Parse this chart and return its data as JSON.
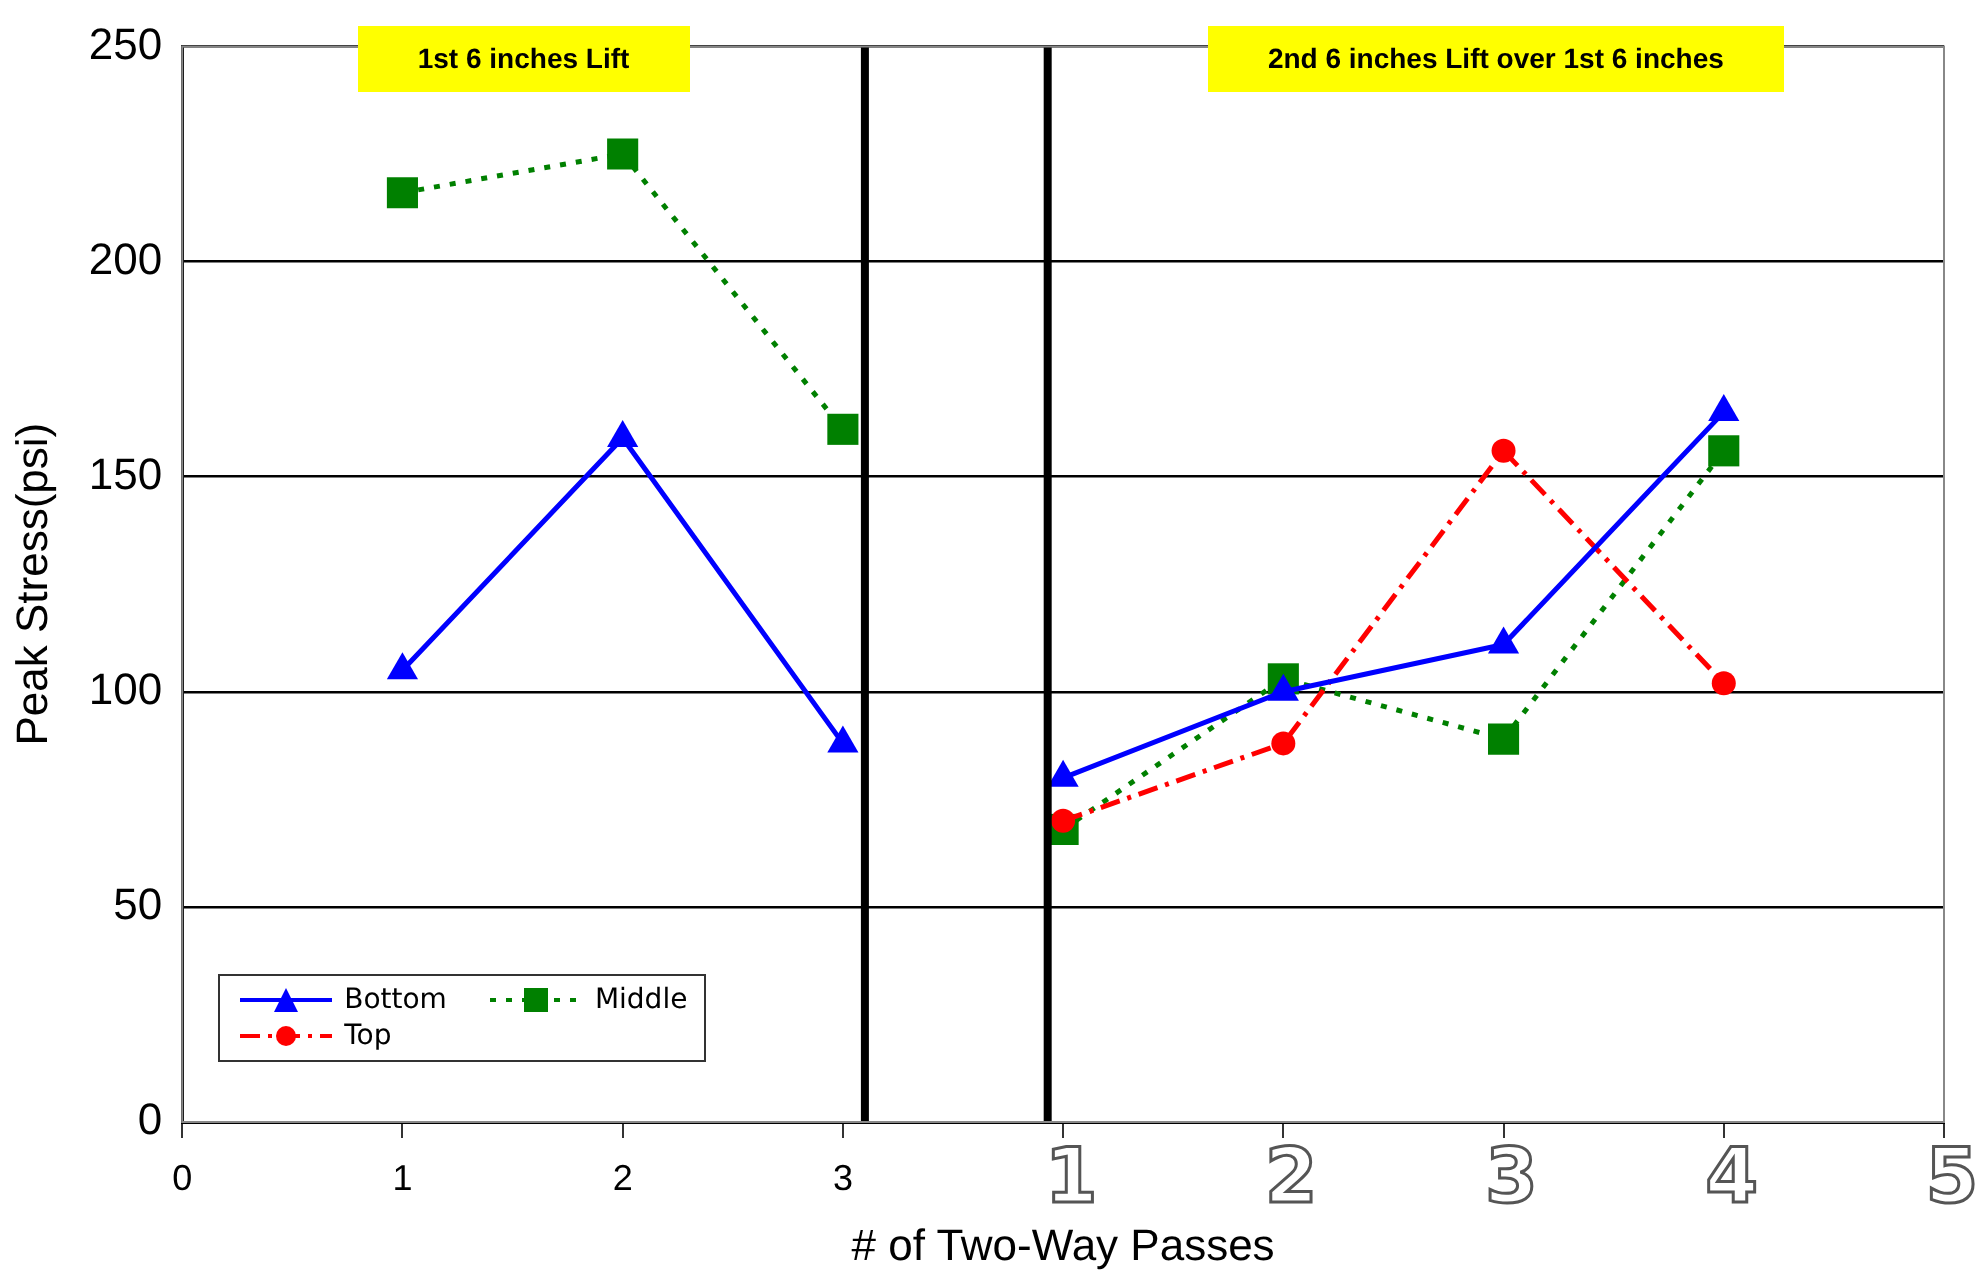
{
  "chart_data": {
    "type": "line",
    "xlabel": "# of Two-Way Passes",
    "ylabel": "Peak Stress(psi)",
    "xlim": [
      0,
      8
    ],
    "xticks": [
      0,
      1,
      2,
      3,
      {
        "value": 4,
        "label": null
      },
      {
        "value": 5,
        "label": null
      },
      {
        "value": 6,
        "label": null
      },
      {
        "value": 7,
        "label": null
      },
      {
        "value": 8,
        "label": null
      }
    ],
    "ylim": [
      0,
      250
    ],
    "yticks": [
      0,
      50,
      100,
      150,
      200,
      250
    ],
    "grid": "y",
    "legend": "bottom left",
    "series": [
      {
        "name": "Bottom",
        "color": "#0000ff",
        "marker": "triangle",
        "line_style": "solid",
        "x": [
          1,
          2,
          3,
          3.5,
          4,
          5,
          6,
          7
        ],
        "values": [
          105,
          159,
          88,
          null,
          80,
          100,
          111,
          165
        ]
      },
      {
        "name": "Top",
        "color": "#ff0000",
        "marker": "circle",
        "line_style": "dashed",
        "x": [
          4,
          5,
          6,
          7
        ],
        "values": [
          70,
          88,
          156,
          102
        ]
      },
      {
        "name": "Middle",
        "color": "#008000",
        "marker": "square",
        "line_style": "dotted",
        "x": [
          1,
          2,
          3,
          3.5,
          4,
          5,
          6,
          7
        ],
        "values": [
          216,
          225,
          161,
          null,
          68,
          103,
          89,
          156
        ]
      }
    ],
    "ref_lines": [
      {
        "axis": "x",
        "value": 3.1,
        "color": "#000000"
      },
      {
        "axis": "x",
        "value": 3.93,
        "color": "#000000"
      }
    ],
    "annotations": [
      "1st 6 inches Lift",
      "2nd 6 inches Lift over 1st 6 inches",
      "1",
      "2",
      "3",
      "4",
      "5"
    ]
  }
}
